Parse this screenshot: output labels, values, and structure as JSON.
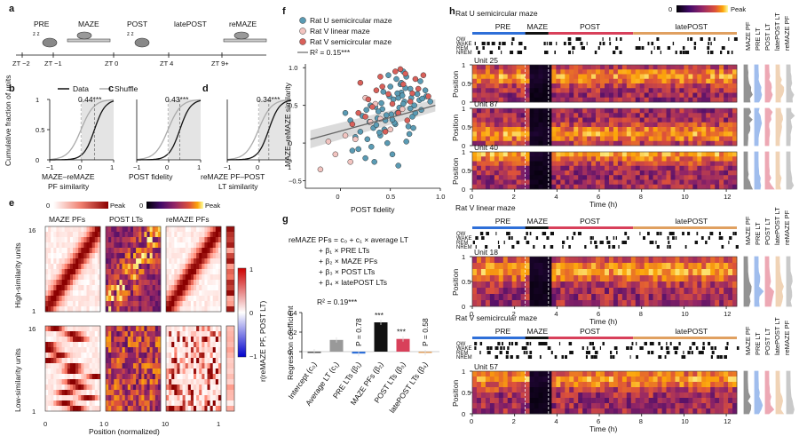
{
  "colors": {
    "ratU": "#5a9bb4",
    "ratVlin": "#f2c4c0",
    "ratVsemi": "#d9605a",
    "pre": "#2e6fd8",
    "maze": "#111111",
    "post": "#d8405a",
    "latepost": "#e0a060",
    "data_line": "#111111",
    "shuffle_line": "#aaaaaa"
  },
  "panel_a": {
    "label": "a",
    "phases": [
      "PRE",
      "MAZE",
      "POST",
      "latePOST",
      "reMAZE"
    ],
    "times": [
      "ZT −2",
      "ZT −1",
      "ZT 0",
      "ZT 4",
      "ZT 9+"
    ]
  },
  "panel_bcd": {
    "ylabel": "Cumulative fraction of units",
    "legend": [
      "Data",
      "Shuffle"
    ],
    "panels": [
      {
        "label": "b",
        "value": "0.44***",
        "xlabel": "MAZE–reMAZE PF similarity"
      },
      {
        "label": "c",
        "value": "0.43***",
        "xlabel": "POST fidelity"
      },
      {
        "label": "d",
        "value": "0.34***",
        "xlabel": "reMAZE PF–POST LT similarity"
      }
    ],
    "yticks": [
      "1",
      "0.5",
      "0"
    ],
    "xticks": [
      "−1",
      "0",
      "1"
    ]
  },
  "panel_e": {
    "label": "e",
    "cbar_red_ticks": [
      "0",
      "Peak"
    ],
    "cbar_inferno_ticks": [
      "0",
      "Peak"
    ],
    "columns": [
      "MAZE PFs",
      "POST LTs",
      "reMAZE PFs"
    ],
    "row_high": "High-similarity units",
    "row_low": "Low-similarity units",
    "ytick_top": "16",
    "ytick_bottom": "1",
    "xlabel": "Position (normalized)",
    "xticks": [
      "0",
      "1"
    ],
    "side_cbar_label": "r(reMAZE PF, POST LT)",
    "side_cbar_ticks": [
      "1",
      "0",
      "−1"
    ]
  },
  "panel_f": {
    "label": "f",
    "legend": [
      "Rat U semicircular maze",
      "Rat V linear maze",
      "Rat V semicircular maze"
    ],
    "r2": "R² = 0.15***",
    "xlabel": "POST fidelity",
    "ylabel": "MAZE–reMAZE similarity",
    "xticks": [
      "0",
      "0.5",
      "1.0"
    ],
    "yticks": [
      "1.0",
      "0.5",
      "0",
      "−0.5"
    ]
  },
  "chart_data": {
    "type": "scatter",
    "title": "",
    "xlabel": "POST fidelity",
    "ylabel": "MAZE–reMAZE similarity",
    "xlim": [
      -0.35,
      1.0
    ],
    "ylim": [
      -0.6,
      1.05
    ],
    "regression": {
      "x": [
        -0.3,
        0.95
      ],
      "y": [
        0.05,
        0.5
      ],
      "r2": 0.15
    },
    "series": [
      {
        "name": "Rat U semicircular maze",
        "color": "#5a9bb4",
        "x": [
          0.42,
          0.58,
          0.33,
          0.7,
          0.12,
          0.51,
          0.64,
          0.8,
          0.27,
          0.45,
          0.61,
          0.38,
          0.74,
          0.55,
          0.2,
          0.66,
          0.49,
          0.85,
          0.31,
          0.57,
          0.4,
          0.72,
          0.6,
          0.25,
          0.53,
          0.68,
          0.35,
          0.77,
          0.47,
          0.63,
          0.1,
          0.56,
          0.81,
          0.44,
          0.29,
          0.71,
          0.52,
          0.65,
          0.37,
          0.9,
          0.15,
          0.59,
          0.48,
          0.75,
          0.34,
          0.62,
          0.22,
          0.69,
          0.43,
          0.54,
          0.79,
          0.3,
          0.66,
          0.05,
          0.5,
          0.58,
          0.41,
          0.73,
          0.86,
          0.26,
          0.46,
          0.63,
          0.39,
          0.57,
          0.18,
          0.7,
          0.52,
          0.82,
          0.36,
          0.61
        ],
        "y": [
          0.45,
          0.6,
          0.2,
          0.72,
          -0.1,
          0.38,
          0.55,
          0.82,
          0.05,
          0.3,
          0.67,
          0.42,
          0.5,
          0.25,
          0.15,
          0.88,
          0.62,
          0.7,
          -0.05,
          0.4,
          0.1,
          0.35,
          0.78,
          -0.2,
          0.58,
          0.22,
          0.48,
          0.65,
          0.0,
          0.52,
          0.3,
          0.85,
          0.44,
          0.18,
          0.28,
          0.6,
          -0.15,
          0.73,
          0.33,
          0.55,
          0.08,
          0.47,
          0.9,
          0.4,
          -0.25,
          0.63,
          0.36,
          0.12,
          0.68,
          0.27,
          0.57,
          0.5,
          0.02,
          0.4,
          0.75,
          -0.3,
          0.53,
          0.2,
          0.62,
          0.44,
          0.37,
          0.95,
          0.14,
          0.66,
          -0.08,
          0.46,
          0.31,
          0.59,
          0.24,
          0.8
        ]
      },
      {
        "name": "Rat V linear maze",
        "color": "#f2c4c0",
        "x": [
          -0.2,
          0.05,
          0.3,
          -0.05,
          0.15,
          0.4,
          0.62,
          0.25,
          -0.12,
          0.5,
          0.1,
          0.35
        ],
        "y": [
          -0.35,
          0.1,
          0.28,
          -0.15,
          0.05,
          0.32,
          0.45,
          0.6,
          0.02,
          0.18,
          -0.25,
          0.52
        ]
      },
      {
        "name": "Rat V semicircular maze",
        "color": "#d9605a",
        "x": [
          0.2,
          0.48,
          0.65,
          0.32,
          0.78,
          0.55,
          0.12,
          0.7,
          0.4,
          0.58,
          0.88,
          0.28,
          0.63,
          0.45,
          0.75,
          0.36,
          0.52,
          0.83,
          0.18,
          0.67,
          0.42,
          0.6,
          0.25,
          0.72
        ],
        "y": [
          0.8,
          0.65,
          0.92,
          0.48,
          0.72,
          0.95,
          0.25,
          0.55,
          0.88,
          0.4,
          0.62,
          0.58,
          0.78,
          0.15,
          0.85,
          0.7,
          0.52,
          0.9,
          0.4,
          0.3,
          0.75,
          0.98,
          0.35,
          0.66
        ]
      }
    ]
  },
  "panel_g": {
    "label": "g",
    "equation": [
      "reMAZE PFs = c₀ + c₁ × average LT",
      "+ β₁ × PRE LTs",
      "+ β₂ × MAZE PFs",
      "+ β₃ × POST LTs",
      "+ β₄ × latePOST LTs"
    ],
    "r2": "R² = 0.19***",
    "ylabel": "Regression coefficient",
    "yticks": [
      "0.4",
      "0.2",
      "0"
    ],
    "bars": [
      {
        "label": "Intercept (c₀)",
        "value": 0.0,
        "color": "#555555",
        "annot": ""
      },
      {
        "label": "Average LT (c₁)",
        "value": 0.12,
        "color": "#999999",
        "annot": ""
      },
      {
        "label": "PRE LTs (β₁)",
        "value": -0.02,
        "color": "#2e6fd8",
        "annot": "P = 0.78"
      },
      {
        "label": "MAZE PFs (β₂)",
        "value": 0.3,
        "color": "#111111",
        "annot": "***"
      },
      {
        "label": "POST LTs (β₃)",
        "value": 0.13,
        "color": "#d8405a",
        "annot": "***"
      },
      {
        "label": "latePOST LTs (β₄)",
        "value": -0.01,
        "color": "#e0a060",
        "annot": "P = 0.58"
      }
    ]
  },
  "panel_h": {
    "label": "h",
    "cbar_ticks": [
      "0",
      "Peak"
    ],
    "side_labels": [
      "MAZE PF",
      "PRE LT",
      "POST LT",
      "latePOST LT",
      "reMAZE PF"
    ],
    "state_labels": [
      "QW",
      "WAKE",
      "REM",
      "NREM"
    ],
    "ylabel": "Position",
    "yticks": [
      "1",
      "0.5",
      "0"
    ],
    "xlabel": "Time (h)",
    "xticks": [
      "0",
      "2",
      "4",
      "6",
      "8",
      "10",
      "12"
    ],
    "groups": [
      {
        "title": "Rat U semicircular maze",
        "phases": [
          "PRE",
          "MAZE",
          "POST",
          "latePOST"
        ],
        "units": [
          "Unit 25",
          "Unit 87",
          "Unit 40"
        ]
      },
      {
        "title": "Rat V linear maze",
        "phases": [
          "PRE",
          "MAZE",
          "POST",
          "latePOST"
        ],
        "units": [
          "Unit 18"
        ]
      },
      {
        "title": "Rat V semicircular maze",
        "phases": [
          "PRE",
          "MAZE",
          "POST",
          "latePOST"
        ],
        "units": [
          "Unit 57"
        ]
      }
    ]
  }
}
